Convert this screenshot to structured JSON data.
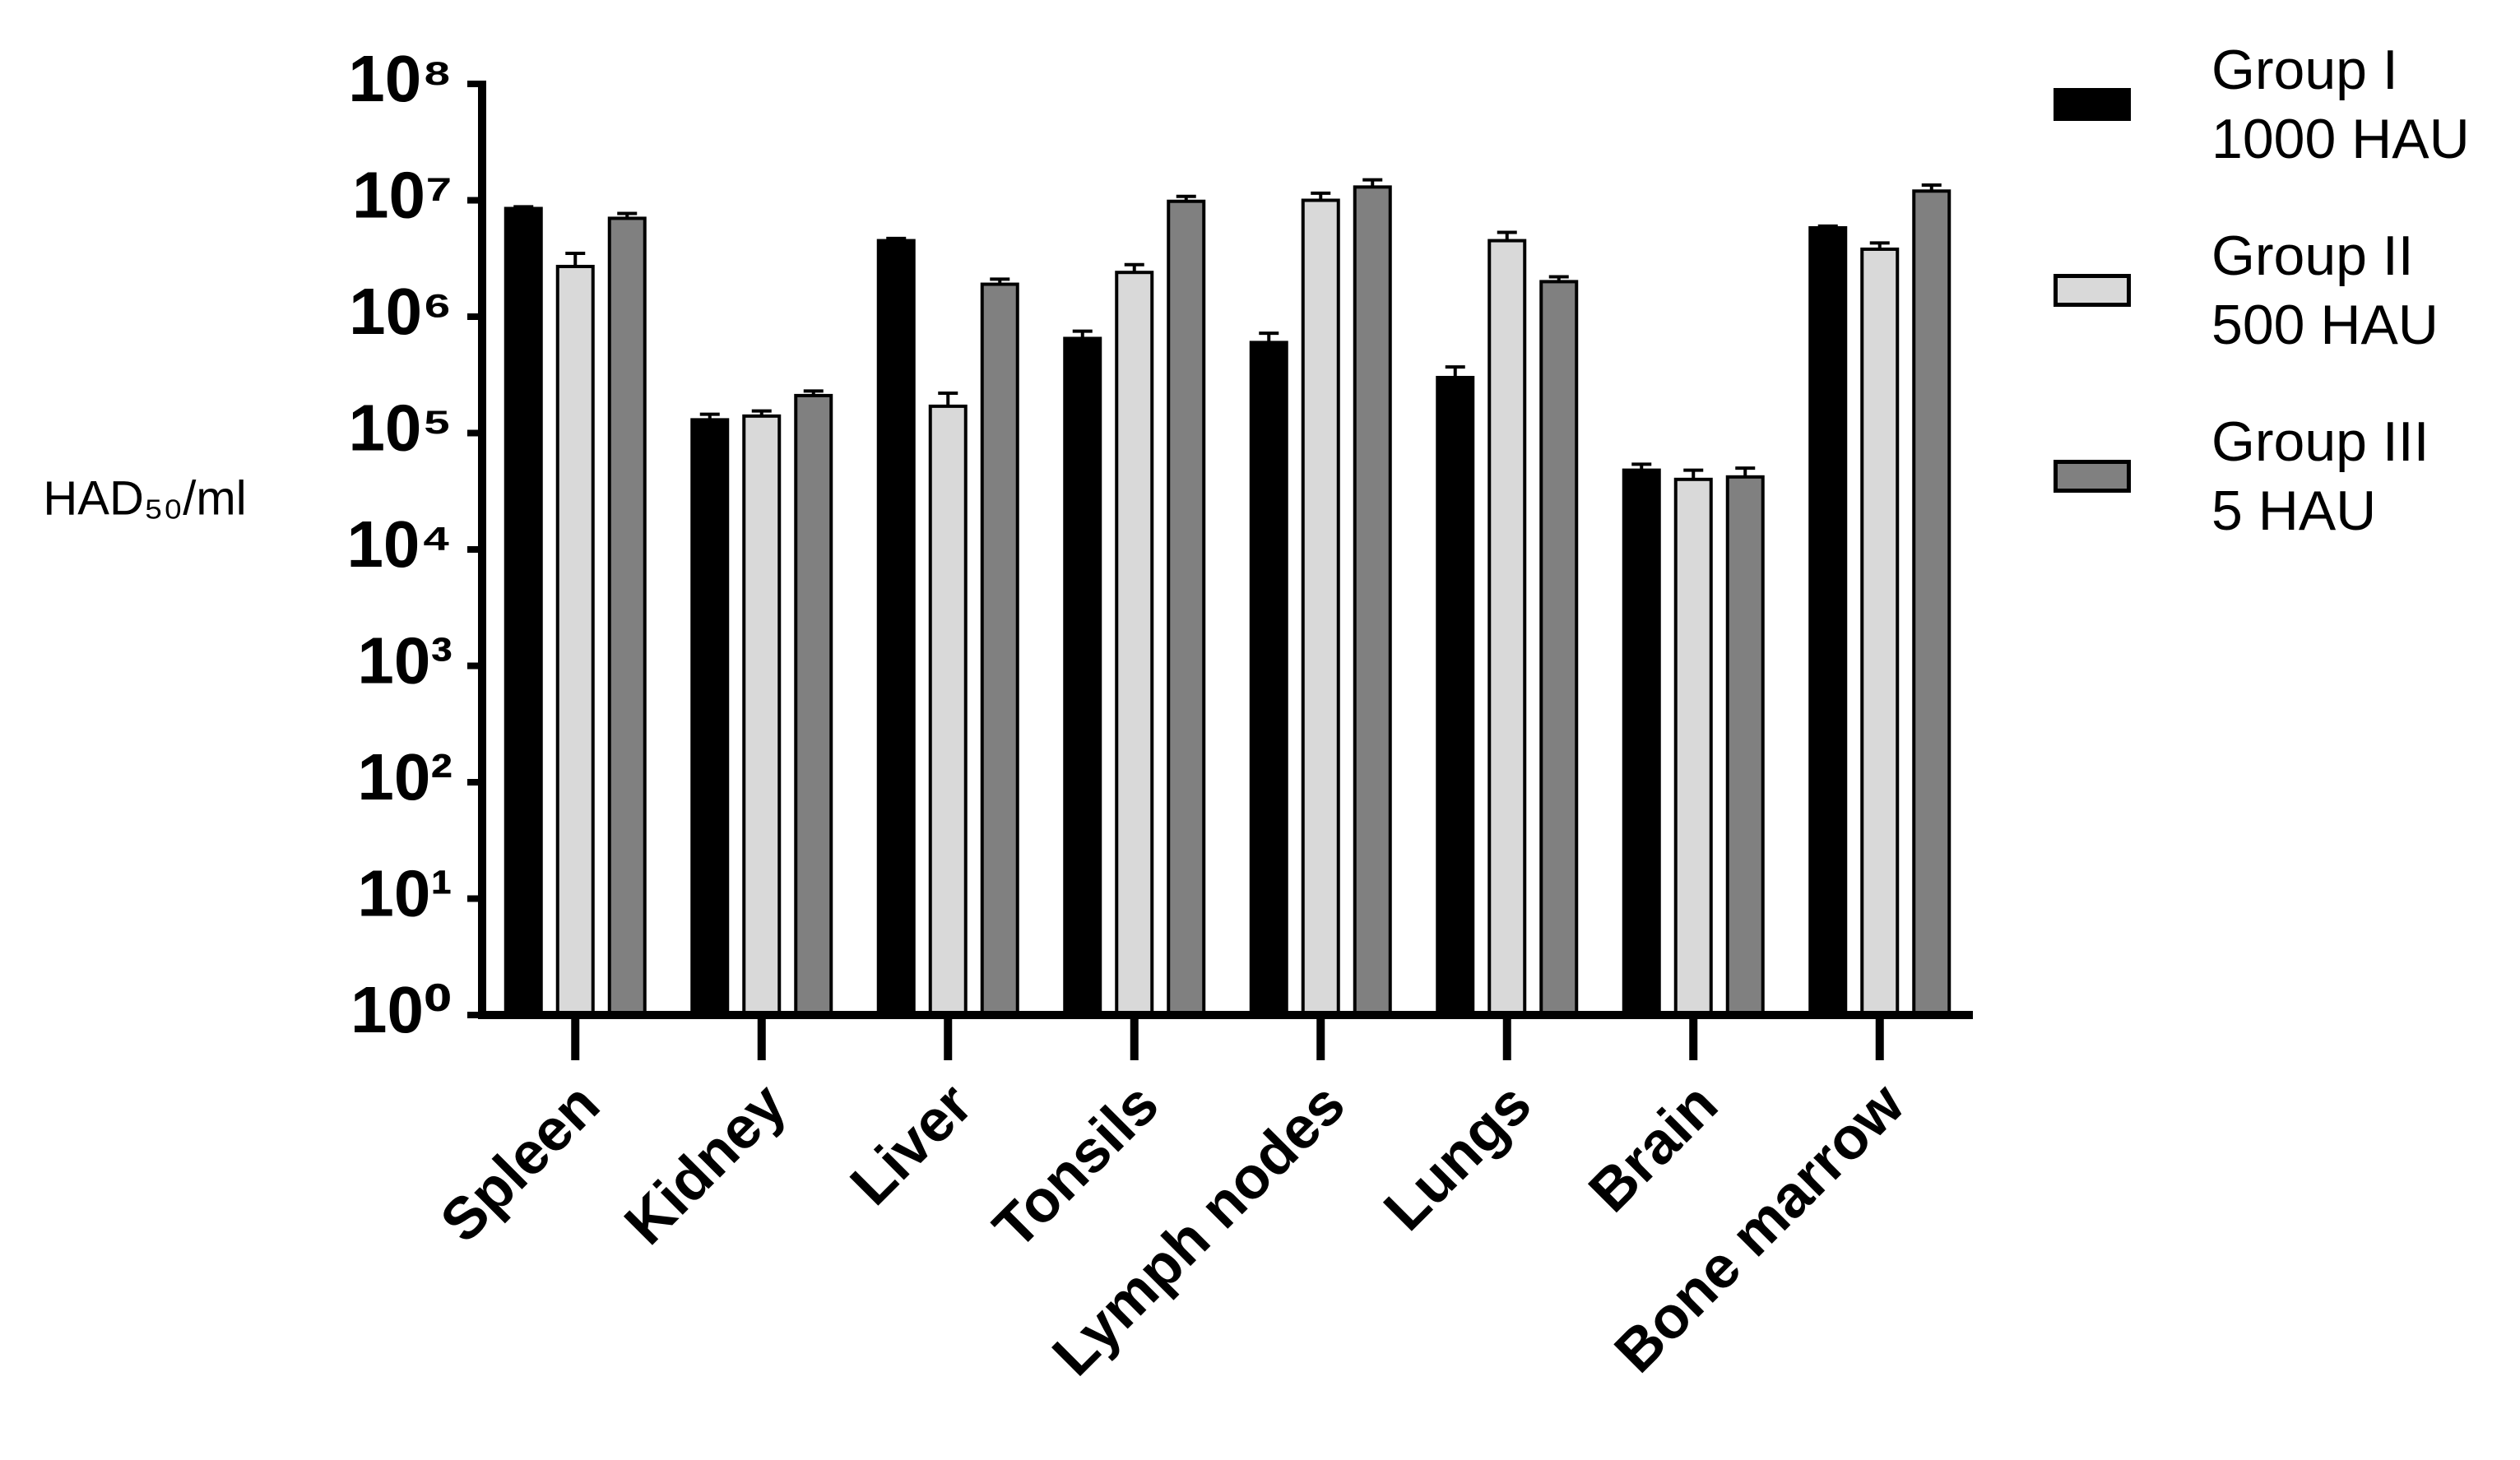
{
  "chart_data": {
    "type": "bar",
    "y_label": "HAD₅₀/ml",
    "log_scale": true,
    "ylim": [
      1,
      100000000
    ],
    "yticks": [
      {
        "value": 1,
        "label": "10⁰"
      },
      {
        "value": 10,
        "label": "10¹"
      },
      {
        "value": 100,
        "label": "10²"
      },
      {
        "value": 1000,
        "label": "10³"
      },
      {
        "value": 10000,
        "label": "10⁴"
      },
      {
        "value": 100000,
        "label": "10⁵"
      },
      {
        "value": 1000000,
        "label": "10⁶"
      },
      {
        "value": 10000000,
        "label": "10⁷"
      },
      {
        "value": 100000000,
        "label": "10⁸"
      }
    ],
    "categories": [
      "Spleen",
      "Kidney",
      "Liver",
      "Tonsils",
      "Lymph nodes",
      "Lungs",
      "Brain",
      "Bone marrow"
    ],
    "series": [
      {
        "name": "Group I\n1000 HAU",
        "color": "#000000",
        "values": [
          8500000,
          130000,
          4500000,
          650000,
          600000,
          300000,
          48000,
          5800000
        ],
        "errors": [
          300000,
          15000,
          200000,
          100000,
          120000,
          70000,
          6000,
          200000
        ]
      },
      {
        "name": "Group II\n500 HAU",
        "color": "#d9d9d9",
        "values": [
          2700000,
          140000,
          170000,
          2400000,
          10000000,
          4500000,
          40000,
          3800000
        ],
        "errors": [
          800000,
          15000,
          50000,
          400000,
          1500000,
          800000,
          8000,
          500000
        ]
      },
      {
        "name": "Group III\n5 HAU",
        "color": "#808080",
        "values": [
          7000000,
          210000,
          1900000,
          9800000,
          13000000,
          2000000,
          42000,
          12000000
        ],
        "errors": [
          700000,
          20000,
          200000,
          1000000,
          2000000,
          200000,
          8000,
          1500000
        ]
      }
    ]
  }
}
